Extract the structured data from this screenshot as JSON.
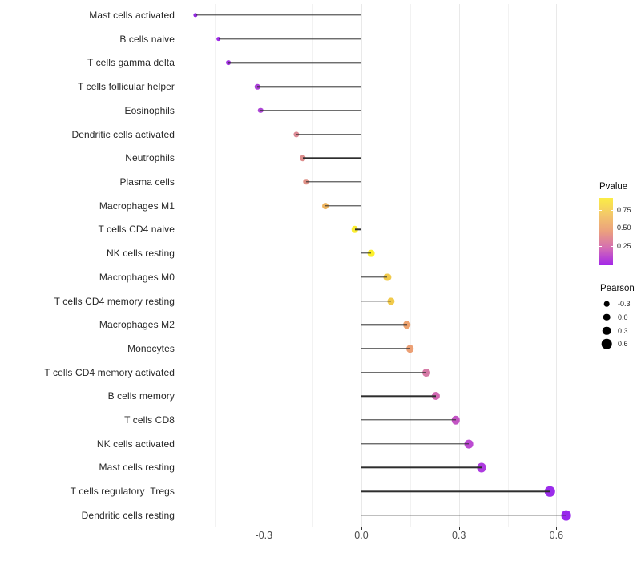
{
  "chart_data": {
    "type": "lollipop",
    "orientation": "horizontal",
    "title": "",
    "xlabel": "",
    "ylabel": "",
    "grid": "vertical-major-and-minor",
    "legend_position": "right",
    "stem_color": "#2e2e2e",
    "x_axis": {
      "tick_values": [
        -0.3,
        0.0,
        0.3,
        0.6
      ],
      "tick_labels": [
        "-0.3",
        "0.0",
        "0.3",
        "0.6"
      ],
      "minor_tick_values": [
        -0.45,
        -0.15,
        0.15,
        0.45
      ],
      "range": [
        -0.545,
        0.668
      ]
    },
    "rows": [
      {
        "label": "Mast cells activated",
        "pearson": -0.51,
        "color": "#9227e0"
      },
      {
        "label": "B cells naive",
        "pearson": -0.44,
        "color": "#a02be8"
      },
      {
        "label": "T cells gamma delta",
        "pearson": -0.41,
        "color": "#a231e2"
      },
      {
        "label": "T cells follicular helper",
        "pearson": -0.32,
        "color": "#ab41d8"
      },
      {
        "label": "Eosinophils",
        "pearson": -0.31,
        "color": "#ad46d5"
      },
      {
        "label": "Dendritic cells activated",
        "pearson": -0.2,
        "color": "#db8a95"
      },
      {
        "label": "Neutrophils",
        "pearson": -0.18,
        "color": "#dd8e8d"
      },
      {
        "label": "Plasma cells",
        "pearson": -0.17,
        "color": "#df9187"
      },
      {
        "label": "Macrophages M1",
        "pearson": -0.11,
        "color": "#eeb45f"
      },
      {
        "label": "T cells CD4 naive",
        "pearson": -0.02,
        "color": "#fbed32"
      },
      {
        "label": "NK cells resting",
        "pearson": 0.03,
        "color": "#fcf02b"
      },
      {
        "label": "Macrophages M0",
        "pearson": 0.08,
        "color": "#f1ca4b"
      },
      {
        "label": "T cells CD4 memory resting",
        "pearson": 0.09,
        "color": "#f1ca4b"
      },
      {
        "label": "Macrophages M2",
        "pearson": 0.14,
        "color": "#eda26e"
      },
      {
        "label": "Monocytes",
        "pearson": 0.15,
        "color": "#eca075"
      },
      {
        "label": "T cells CD4 memory activated",
        "pearson": 0.2,
        "color": "#d579a5"
      },
      {
        "label": "B cells memory",
        "pearson": 0.23,
        "color": "#d168b2"
      },
      {
        "label": "T cells CD8",
        "pearson": 0.29,
        "color": "#c354c4"
      },
      {
        "label": "NK cells activated",
        "pearson": 0.33,
        "color": "#bc4ad2"
      },
      {
        "label": "Mast cells resting",
        "pearson": 0.37,
        "color": "#ae3be0"
      },
      {
        "label": "T cells regulatory  Tregs",
        "pearson": 0.58,
        "color": "#9b2ceb"
      },
      {
        "label": "Dendritic cells resting",
        "pearson": 0.63,
        "color": "#9929ec"
      }
    ],
    "legends": {
      "pvalue": {
        "title": "Pvalue",
        "gradient_top_to_bottom": [
          "#fbed45",
          "#f3c76a",
          "#eb9f7e",
          "#d36cb5",
          "#a326e9"
        ],
        "ticks": [
          {
            "label": "0.75",
            "t": 0.18
          },
          {
            "label": "0.50",
            "t": 0.446
          },
          {
            "label": "0.25",
            "t": 0.72
          }
        ]
      },
      "pearson": {
        "title": "Pearson",
        "dot_color": "#000000",
        "items": [
          {
            "label": "-0.3",
            "value": -0.3
          },
          {
            "label": "0.0",
            "value": 0.0
          },
          {
            "label": "0.3",
            "value": 0.3
          },
          {
            "label": "0.6",
            "value": 0.6
          }
        ]
      }
    }
  }
}
